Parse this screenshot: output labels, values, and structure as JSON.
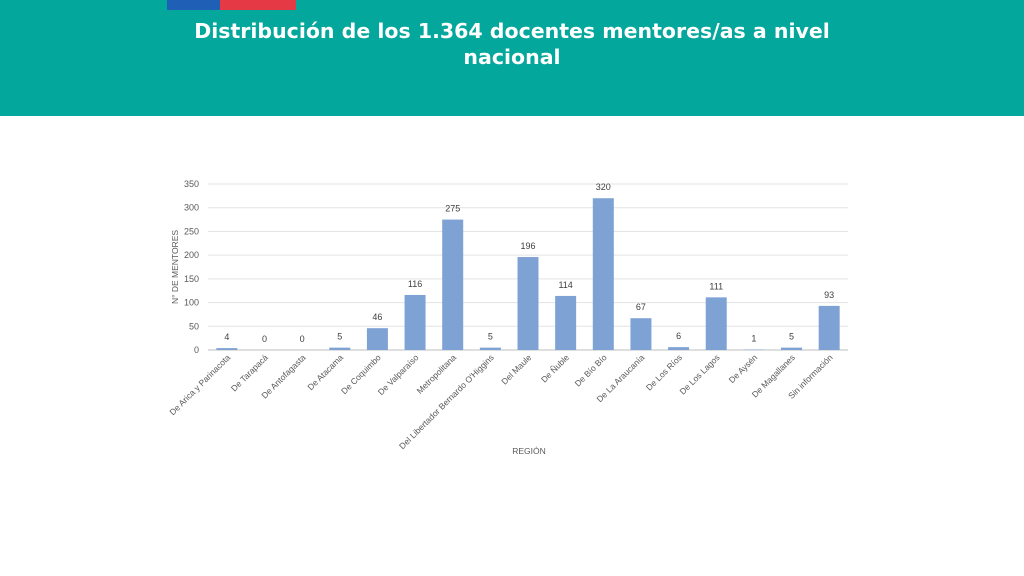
{
  "header": {
    "title": "Distribución de los  1.364 docentes mentores/as a nivel nacional",
    "background_color": "#03a79b",
    "flag_colors": [
      "#1f5fb5",
      "#e63946"
    ]
  },
  "chart_data": {
    "type": "bar",
    "title": "",
    "xlabel": "REGIÓN",
    "ylabel": "N° DE MENTORES",
    "ylim": [
      0,
      350
    ],
    "yticks": [
      0,
      50,
      100,
      150,
      200,
      250,
      300,
      350
    ],
    "grid": true,
    "bar_color": "#7fa2d4",
    "categories": [
      "De Arica y Parinacota",
      "De Tarapacá",
      "De Antofagasta",
      "De Atacama",
      "De Coquimbo",
      "De Valparaíso",
      "Metropolitana",
      "Del Libertador Bernardo O'Higgins",
      "Del Maule",
      "De Ñuble",
      "De Bío Bío",
      "De La Araucanía",
      "De Los Ríos",
      "De Los Lagos",
      "De Aysén",
      "De Magallanes",
      "Sin información"
    ],
    "values": [
      4,
      0,
      0,
      5,
      46,
      116,
      275,
      5,
      196,
      114,
      320,
      67,
      6,
      111,
      1,
      5,
      93
    ]
  }
}
